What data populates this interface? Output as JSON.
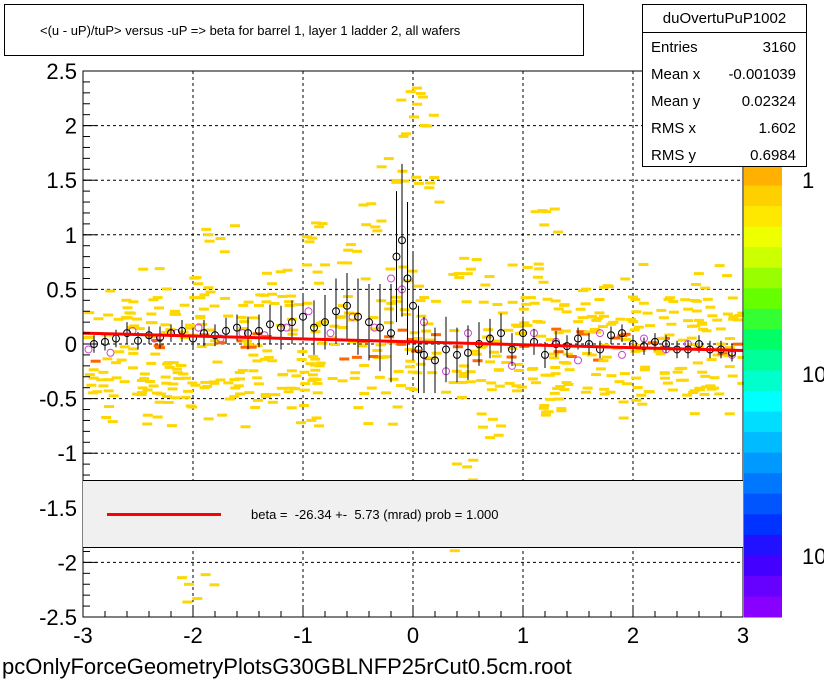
{
  "title": "<(u - uP)/tuP> versus  -uP => beta for barrel 1, layer 1 ladder 2, all wafers",
  "stats": {
    "name": "duOvertuPuP1002",
    "rows": [
      {
        "key": "Entries",
        "value": "3160"
      },
      {
        "key": "Mean x",
        "value": "-0.001039"
      },
      {
        "key": "Mean y",
        "value": "0.02324"
      },
      {
        "key": "RMS x",
        "value": "1.602"
      },
      {
        "key": "RMS y",
        "value": "0.6984"
      }
    ]
  },
  "legend": {
    "label": "beta =  -26.34 +-  5.73 (mrad) prob = 1.000"
  },
  "colorbar": {
    "labels": [
      "1",
      "10",
      "10"
    ]
  },
  "footer": "pcOnlyForceGeometryPlotsG30GBLNFP25rCut0.5cm.root",
  "colors": {
    "fit": "#ff0000",
    "hist_main": "#ffd700",
    "hist_high": "#ff6600",
    "profile": "#000000",
    "alt_profile": "#cc44cc"
  },
  "chart_data": {
    "type": "scatter",
    "xlim": [
      -3,
      3
    ],
    "ylim": [
      -2.5,
      2.5
    ],
    "x_ticks": [
      "-3",
      "-2",
      "-1",
      "0",
      "1",
      "2",
      "3"
    ],
    "y_ticks": [
      "-2.5",
      "-2",
      "-1.5",
      "-1",
      "-0.5",
      "0",
      "0.5",
      "1",
      "1.5",
      "2",
      "2.5"
    ],
    "grid": true,
    "fit_line": {
      "x": [
        -3,
        3
      ],
      "y": [
        0.1,
        -0.06
      ]
    },
    "profile": {
      "x": [
        -2.9,
        -2.8,
        -2.7,
        -2.6,
        -2.5,
        -2.4,
        -2.3,
        -2.2,
        -2.1,
        -2.0,
        -1.9,
        -1.8,
        -1.7,
        -1.6,
        -1.5,
        -1.4,
        -1.3,
        -1.2,
        -1.1,
        -1.0,
        -0.9,
        -0.8,
        -0.7,
        -0.6,
        -0.5,
        -0.4,
        -0.3,
        -0.2,
        -0.15,
        -0.1,
        -0.05,
        0.0,
        0.05,
        0.1,
        0.2,
        0.3,
        0.4,
        0.5,
        0.6,
        0.7,
        0.8,
        0.9,
        1.0,
        1.1,
        1.2,
        1.3,
        1.4,
        1.5,
        1.6,
        1.7,
        1.8,
        1.9,
        2.0,
        2.1,
        2.2,
        2.3,
        2.4,
        2.5,
        2.6,
        2.7,
        2.8,
        2.9
      ],
      "y": [
        0.0,
        0.02,
        0.05,
        0.1,
        0.03,
        0.08,
        0.06,
        0.1,
        0.12,
        0.05,
        0.1,
        0.08,
        0.12,
        0.15,
        0.1,
        0.12,
        0.18,
        0.15,
        0.2,
        0.25,
        0.15,
        0.2,
        0.3,
        0.35,
        0.25,
        0.2,
        0.15,
        0.1,
        0.8,
        0.95,
        0.6,
        0.35,
        -0.05,
        -0.1,
        -0.15,
        -0.05,
        -0.1,
        -0.08,
        0.0,
        0.05,
        0.1,
        -0.05,
        0.1,
        0.02,
        -0.1,
        0.0,
        -0.02,
        0.05,
        0.0,
        -0.05,
        0.08,
        0.1,
        0.0,
        -0.02,
        0.02,
        0.0,
        -0.05,
        -0.05,
        0.0,
        -0.05,
        -0.05,
        -0.08
      ],
      "err": [
        0.08,
        0.08,
        0.08,
        0.1,
        0.08,
        0.08,
        0.1,
        0.08,
        0.1,
        0.1,
        0.12,
        0.1,
        0.12,
        0.12,
        0.15,
        0.15,
        0.18,
        0.2,
        0.2,
        0.2,
        0.25,
        0.25,
        0.3,
        0.3,
        0.35,
        0.35,
        0.4,
        0.45,
        0.6,
        0.7,
        0.7,
        0.5,
        0.4,
        0.35,
        0.3,
        0.3,
        0.25,
        0.25,
        0.2,
        0.18,
        0.18,
        0.15,
        0.15,
        0.12,
        0.12,
        0.12,
        0.1,
        0.1,
        0.1,
        0.08,
        0.08,
        0.08,
        0.08,
        0.08,
        0.08,
        0.08,
        0.08,
        0.08,
        0.08,
        0.08,
        0.08,
        0.08
      ]
    },
    "alt_profile": {
      "x": [
        -2.95,
        -2.75,
        -2.55,
        -2.35,
        -2.15,
        -1.95,
        -1.75,
        -1.55,
        -1.35,
        -1.15,
        -0.95,
        -0.75,
        -0.55,
        -0.35,
        -0.2,
        -0.1,
        0.1,
        0.3,
        0.5,
        0.7,
        0.9,
        1.1,
        1.3,
        1.5,
        1.7,
        1.9,
        2.1,
        2.3,
        2.5,
        2.7,
        2.9
      ],
      "y": [
        -0.05,
        -0.08,
        0.12,
        0.05,
        0.1,
        0.15,
        0.05,
        0.1,
        0.08,
        0.15,
        0.3,
        0.1,
        0.25,
        0.15,
        0.6,
        0.5,
        0.2,
        -0.25,
        0.1,
        0.05,
        -0.2,
        0.1,
        0.02,
        -0.15,
        0.1,
        -0.1,
        0.05,
        -0.05,
        0.0,
        -0.05,
        -0.1
      ]
    },
    "density": [
      {
        "x": -2.8,
        "y": -0.3
      },
      {
        "x": -2.5,
        "y": 0.4
      },
      {
        "x": -2.2,
        "y": -0.5
      },
      {
        "x": -1.9,
        "y": 0.5
      },
      {
        "x": -1.6,
        "y": -0.4
      },
      {
        "x": -1.3,
        "y": 0.6
      },
      {
        "x": -1.0,
        "y": -0.6
      },
      {
        "x": -0.7,
        "y": 0.8
      },
      {
        "x": -0.4,
        "y": 1.2
      },
      {
        "x": -0.2,
        "y": 1.6
      },
      {
        "x": 0.0,
        "y": 2.0
      },
      {
        "x": 0.2,
        "y": -1.8
      },
      {
        "x": 0.4,
        "y": 0.7
      },
      {
        "x": 0.7,
        "y": -0.7
      },
      {
        "x": 1.0,
        "y": 0.6
      },
      {
        "x": 1.3,
        "y": -0.5
      },
      {
        "x": 1.6,
        "y": 0.4
      },
      {
        "x": 1.9,
        "y": -0.4
      },
      {
        "x": 2.2,
        "y": 0.3
      },
      {
        "x": 2.5,
        "y": -0.3
      },
      {
        "x": 2.8,
        "y": 0.2
      },
      {
        "x": -2.0,
        "y": -2.2
      },
      {
        "x": -0.9,
        "y": 1.0
      },
      {
        "x": 0.1,
        "y": 1.4
      },
      {
        "x": 0.5,
        "y": -1.2
      },
      {
        "x": -0.1,
        "y": 2.3
      },
      {
        "x": 1.2,
        "y": 1.1
      },
      {
        "x": -1.8,
        "y": 1.0
      }
    ]
  }
}
